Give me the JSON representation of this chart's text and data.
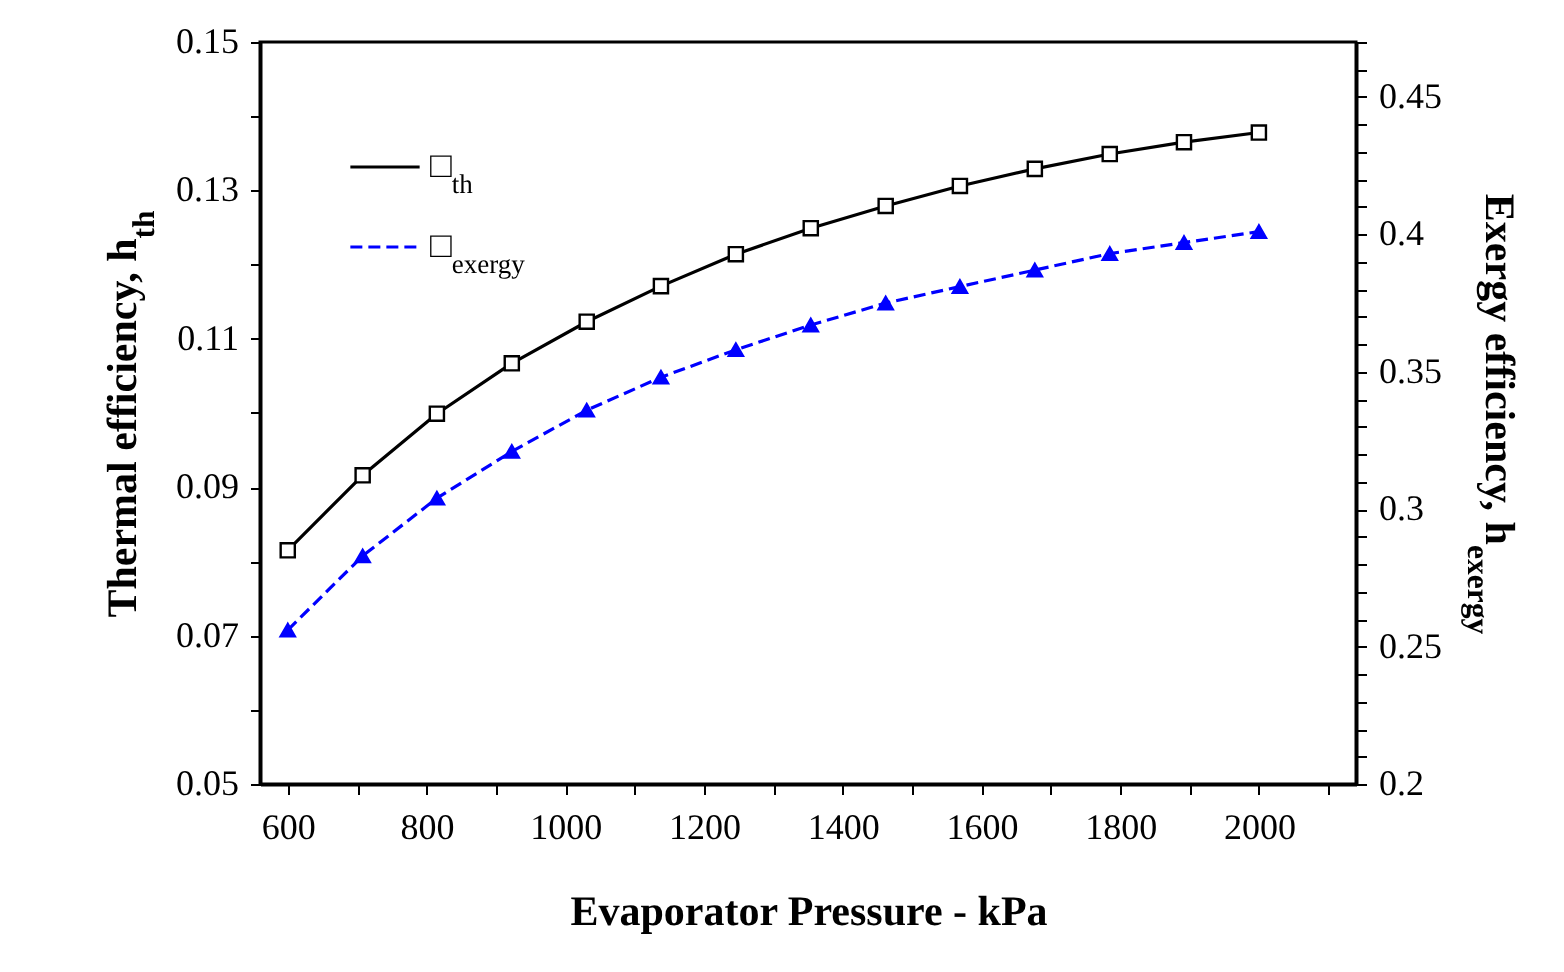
{
  "chart_data": {
    "type": "line",
    "xlabel": "Evaporator Pressure - kPa",
    "ylabel": "Thermal efficiency, h$_{th}$",
    "y2label": "Exergy efficiency, h$_{exergy}$",
    "x": [
      600,
      708,
      815,
      923,
      1031,
      1138,
      1246,
      1354,
      1462,
      1569,
      1677,
      1785,
      1892,
      2000
    ],
    "series": [
      {
        "name": "□$_{th}$",
        "color": "#000000",
        "marker": "square",
        "line_style": "solid",
        "values": [
          0.0815,
          0.0916,
          0.0999,
          0.1067,
          0.1123,
          0.1171,
          0.1214,
          0.1249,
          0.1279,
          0.1306,
          0.1329,
          0.1349,
          0.1365,
          0.1378
        ]
      },
      {
        "name": "□$_{exergy}$",
        "color": "#0000ff",
        "marker": "triangle",
        "line_style": "dashed",
        "axis": "y2",
        "values": [
          0.256,
          0.283,
          0.304,
          0.321,
          0.336,
          0.348,
          0.358,
          0.367,
          0.375,
          0.381,
          0.387,
          0.393,
          0.397,
          0.401
        ]
      }
    ],
    "xlim": [
      560,
      2140
    ],
    "ylim": [
      0.05,
      0.15
    ],
    "y2lim": [
      0.2,
      0.47
    ],
    "xticks": [
      600,
      {
        "value": 700,
        "label": null
      },
      800,
      {
        "value": 900,
        "label": null
      },
      1000,
      {
        "value": 1100,
        "label": null
      },
      1200,
      {
        "value": 1300,
        "label": null
      },
      1400,
      {
        "value": 1500,
        "label": null
      },
      1600,
      {
        "value": 1700,
        "label": null
      },
      1800,
      {
        "value": 1900,
        "label": null
      },
      2000,
      {
        "value": 2100,
        "label": null
      }
    ],
    "yticks": [
      0.05,
      {
        "value": 0.06,
        "label": null
      },
      0.07,
      {
        "value": 0.08,
        "label": null
      },
      0.09,
      {
        "value": 0.1,
        "label": null
      },
      0.11,
      {
        "value": 0.12,
        "label": null
      },
      0.13,
      {
        "value": 0.14,
        "label": null
      },
      0.15
    ],
    "y2ticks": [
      0.2,
      {
        "value": 0.21,
        "label": null
      },
      {
        "value": 0.22,
        "label": null
      },
      {
        "value": 0.23,
        "label": null
      },
      {
        "value": 0.24,
        "label": null
      },
      0.25,
      {
        "value": 0.26,
        "label": null
      },
      {
        "value": 0.27,
        "label": null
      },
      {
        "value": 0.28,
        "label": null
      },
      {
        "value": 0.29,
        "label": null
      },
      0.3,
      {
        "value": 0.31,
        "label": null
      },
      {
        "value": 0.32,
        "label": null
      },
      {
        "value": 0.33,
        "label": null
      },
      {
        "value": 0.34,
        "label": null
      },
      0.35,
      {
        "value": 0.36,
        "label": null
      },
      {
        "value": 0.37,
        "label": null
      },
      {
        "value": 0.38,
        "label": null
      },
      {
        "value": 0.39,
        "label": null
      },
      0.4,
      {
        "value": 0.41,
        "label": null
      },
      {
        "value": 0.42,
        "label": null
      },
      {
        "value": 0.43,
        "label": null
      },
      {
        "value": 0.44,
        "label": null
      },
      0.45,
      {
        "value": 0.46,
        "label": null
      },
      {
        "value": 0.47,
        "label": null
      }
    ],
    "grid": false,
    "legend": "top left"
  }
}
